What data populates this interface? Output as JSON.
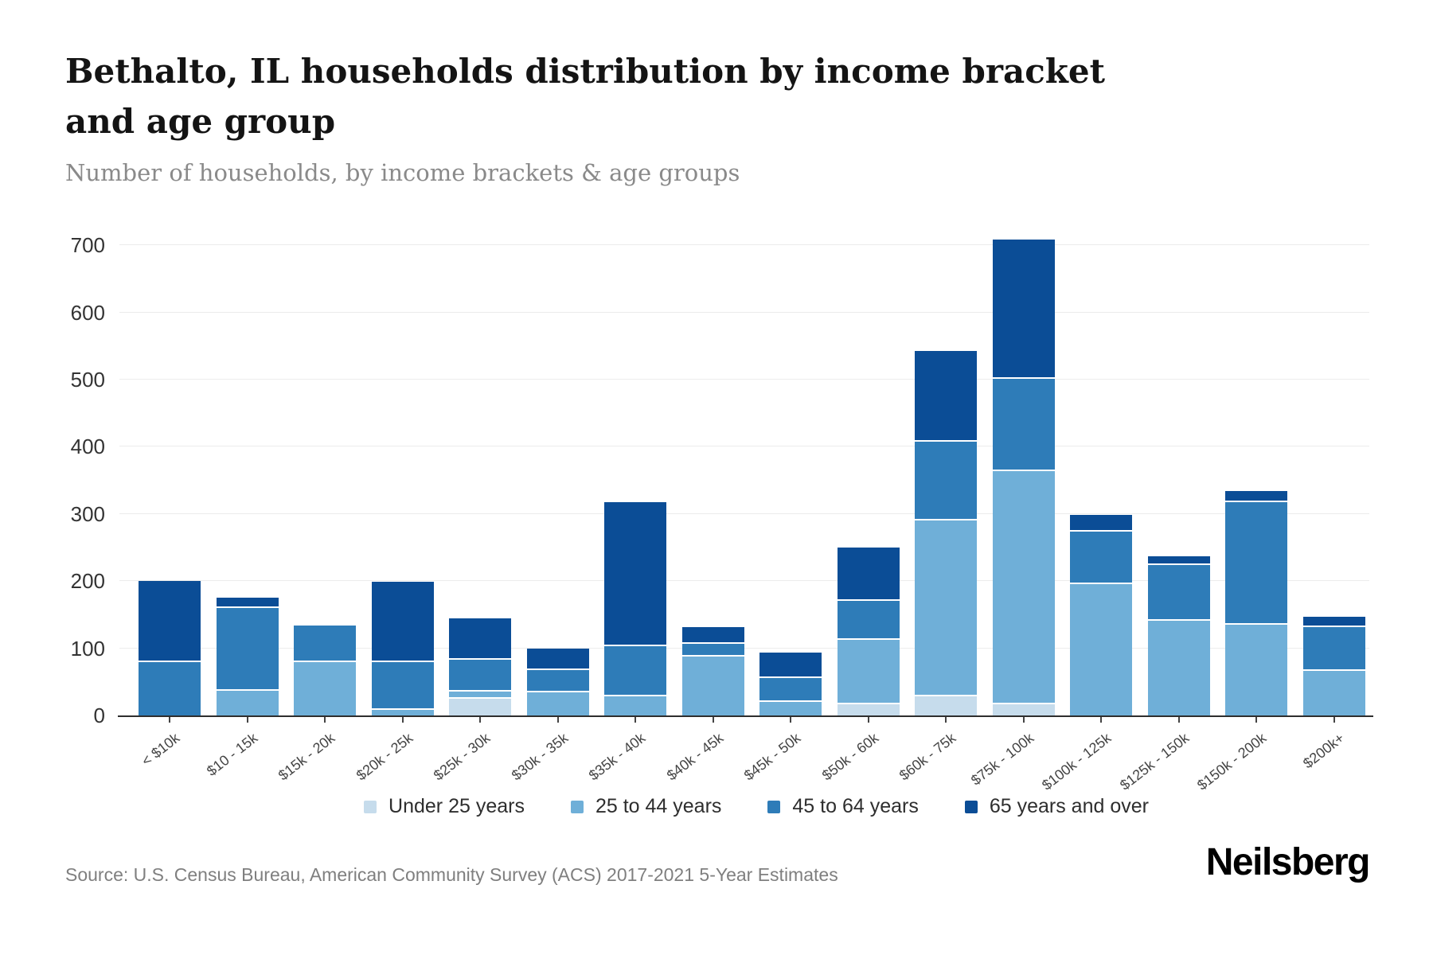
{
  "header": {
    "title": "Bethalto, IL households distribution by income bracket and age group",
    "subtitle": "Number of households, by income brackets & age groups"
  },
  "footer": {
    "source": "Source: U.S. Census Bureau, American Community Survey (ACS) 2017-2021 5-Year Estimates",
    "brand": "Neilsberg"
  },
  "chart_data": {
    "type": "bar",
    "stacked": true,
    "title": "Bethalto, IL households distribution by income bracket and age group",
    "subtitle": "Number of households, by income brackets & age groups",
    "xlabel": "",
    "ylabel": "",
    "ylim": [
      0,
      750
    ],
    "yticks": [
      0,
      100,
      200,
      300,
      400,
      500,
      600,
      700
    ],
    "grid": true,
    "legend_position": "bottom",
    "categories": [
      "< $10k",
      "$10 - 15k",
      "$15k - 20k",
      "$20k - 25k",
      "$25k - 30k",
      "$30k - 35k",
      "$35k - 40k",
      "$40k - 45k",
      "$45k - 50k",
      "$50k - 60k",
      "$60k - 75k",
      "$75k - 100k",
      "$100k - 125k",
      "$125k - 150k",
      "$150k - 200k",
      "$200k+"
    ],
    "series": [
      {
        "name": "Under 25 years",
        "color": "#c6dcec",
        "values": [
          0,
          0,
          0,
          0,
          25,
          0,
          0,
          0,
          0,
          17,
          28,
          17,
          0,
          0,
          0,
          0
        ]
      },
      {
        "name": "25 to 44 years",
        "color": "#6fafd8",
        "values": [
          0,
          37,
          79,
          8,
          10,
          34,
          29,
          88,
          20,
          96,
          262,
          347,
          196,
          141,
          135,
          66
        ]
      },
      {
        "name": "45 to 64 years",
        "color": "#2e7cb8",
        "values": [
          79,
          123,
          55,
          71,
          48,
          33,
          74,
          19,
          36,
          58,
          118,
          137,
          78,
          83,
          182,
          65
        ]
      },
      {
        "name": "65 years and over",
        "color": "#0b4d96",
        "values": [
          121,
          15,
          0,
          120,
          62,
          32,
          215,
          24,
          38,
          79,
          135,
          207,
          25,
          13,
          17,
          16
        ]
      }
    ],
    "totals": [
      200,
      175,
      134,
      199,
      145,
      99,
      318,
      131,
      94,
      250,
      543,
      708,
      299,
      237,
      334,
      147
    ]
  }
}
